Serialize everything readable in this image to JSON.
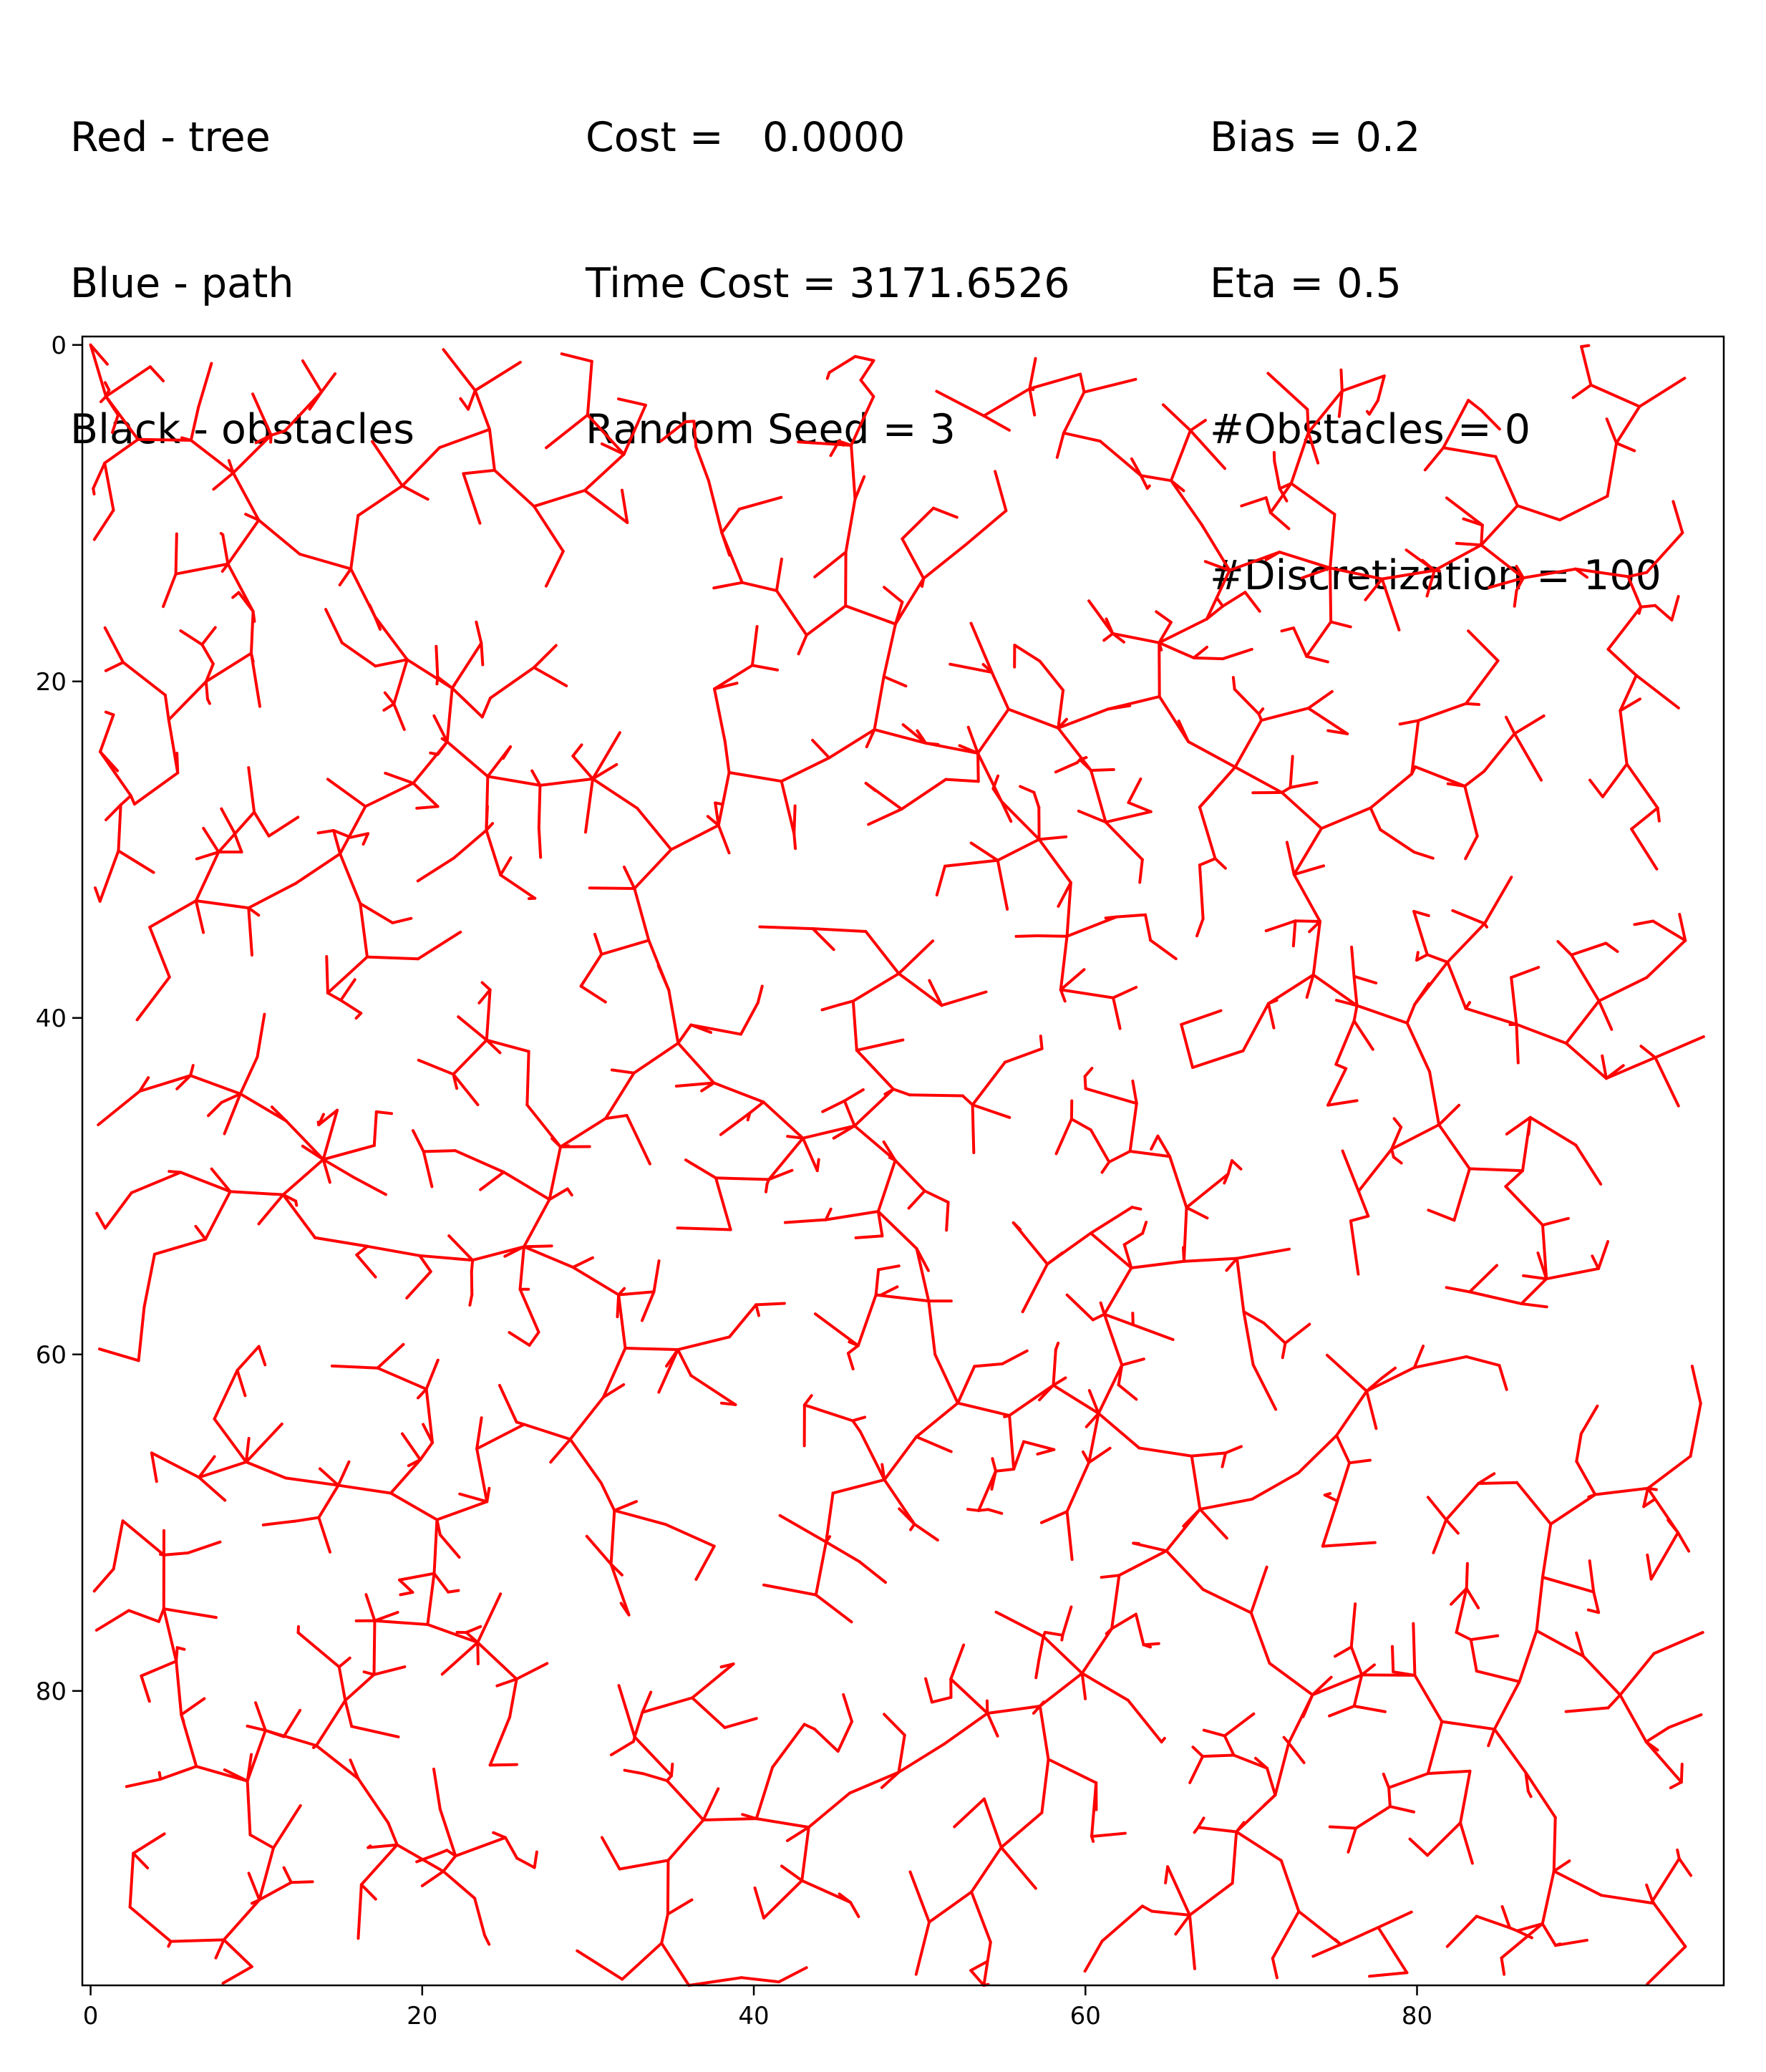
{
  "header": {
    "col1": [
      "Red - tree",
      "Blue - path",
      "Black - obstacles"
    ],
    "col2": [
      "Cost =   0.0000",
      "Time Cost = 3171.6526",
      "Random Seed = 3"
    ],
    "col3": [
      "Bias = 0.2",
      "Eta = 0.5",
      "#Obstacles = 0",
      "#Discretization = 100"
    ]
  },
  "chart_data": {
    "type": "line",
    "title": "",
    "xlabel": "",
    "ylabel": "",
    "xlim": [
      -0.5,
      98.5
    ],
    "ylim": [
      97.5,
      -0.5
    ],
    "y_inverted": true,
    "xticks": [
      0,
      20,
      40,
      60,
      80
    ],
    "yticks": [
      0,
      20,
      40,
      60,
      80
    ],
    "grid": false,
    "colors": {
      "tree": "#ff0000",
      "path": "#0000ff",
      "obstacles": "#000000"
    },
    "series": [
      {
        "root": [
          0,
          0
        ],
        "random_seed": 3,
        "edge_count": 1400,
        "grid_size": 98
      }
    ]
  }
}
